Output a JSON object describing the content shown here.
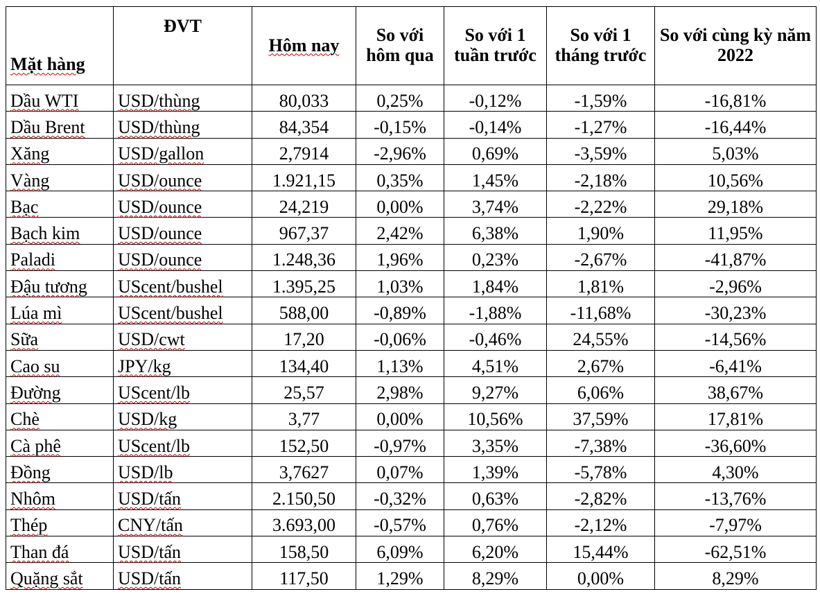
{
  "headers": {
    "item": "Mặt hàng",
    "unit": "ĐVT",
    "today": "Hôm nay",
    "vs_yesterday": "So với hôm qua",
    "vs_week": "So với 1 tuần trước",
    "vs_month": "So với 1 tháng trước",
    "vs_year": "So với cùng kỳ năm 2022"
  },
  "rows": [
    {
      "item": "Dầu WTI",
      "unit": "USD/thùng",
      "today": "80,033",
      "d": "0,25%",
      "w": "-0,12%",
      "m": "-1,59%",
      "y": "-16,81%"
    },
    {
      "item": "Dầu Brent",
      "unit": "USD/thùng",
      "today": "84,354",
      "d": "-0,15%",
      "w": "-0,14%",
      "m": "-1,27%",
      "y": "-16,44%"
    },
    {
      "item": "Xăng",
      "unit": "USD/gallon",
      "today": "2,7914",
      "d": "-2,96%",
      "w": "0,69%",
      "m": "-3,59%",
      "y": "5,03%"
    },
    {
      "item": "Vàng",
      "unit": "USD/ounce",
      "today": "1.921,15",
      "d": "0,35%",
      "w": "1,45%",
      "m": "-2,18%",
      "y": "10,56%"
    },
    {
      "item": "Bạc",
      "unit": "USD/ounce",
      "today": "24,219",
      "d": "0,00%",
      "w": "3,74%",
      "m": "-2,22%",
      "y": "29,18%"
    },
    {
      "item": "Bạch kim",
      "unit": "USD/ounce",
      "today": "967,37",
      "d": "2,42%",
      "w": "6,38%",
      "m": "1,90%",
      "y": "11,95%"
    },
    {
      "item": "Paladi",
      "unit": "USD/ounce",
      "today": "1.248,36",
      "d": "1,96%",
      "w": "0,23%",
      "m": "-2,67%",
      "y": "-41,87%"
    },
    {
      "item": "Đậu tương",
      "unit": "UScent/bushel",
      "today": "1.395,25",
      "d": "1,03%",
      "w": "1,84%",
      "m": "1,81%",
      "y": "-2,96%"
    },
    {
      "item": "Lúa mì",
      "unit": "UScent/bushel",
      "today": "588,00",
      "d": "-0,89%",
      "w": "-1,88%",
      "m": "-11,68%",
      "y": "-30,23%"
    },
    {
      "item": "Sữa",
      "unit": "USD/cwt",
      "today": "17,20",
      "d": "-0,06%",
      "w": "-0,46%",
      "m": "24,55%",
      "y": "-14,56%"
    },
    {
      "item": "Cao su",
      "unit": "JPY/kg",
      "today": "134,40",
      "d": "1,13%",
      "w": "4,51%",
      "m": "2,67%",
      "y": "-6,41%"
    },
    {
      "item": "Đường",
      "unit": "UScent/lb",
      "today": "25,57",
      "d": "2,98%",
      "w": "9,27%",
      "m": "6,06%",
      "y": "38,67%"
    },
    {
      "item": "Chè",
      "unit": "USD/kg",
      "today": "3,77",
      "d": "0,00%",
      "w": "10,56%",
      "m": "37,59%",
      "y": "17,81%"
    },
    {
      "item": "Cà phê",
      "unit": "UScent/lb",
      "today": "152,50",
      "d": "-0,97%",
      "w": "3,35%",
      "m": "-7,38%",
      "y": "-36,60%"
    },
    {
      "item": "Đồng",
      "unit": "USD/lb",
      "today": "3,7627",
      "d": "0,07%",
      "w": "1,39%",
      "m": "-5,78%",
      "y": "4,30%"
    },
    {
      "item": "Nhôm",
      "unit": "USD/tấn",
      "today": "2.150,50",
      "d": "-0,32%",
      "w": "0,63%",
      "m": "-2,82%",
      "y": "-13,76%"
    },
    {
      "item": "Thép",
      "unit": "CNY/tấn",
      "today": "3.693,00",
      "d": "-0,57%",
      "w": "0,76%",
      "m": "-2,12%",
      "y": "-7,97%"
    },
    {
      "item": "Than đá",
      "unit": "USD/tấn",
      "today": "158,50",
      "d": "6,09%",
      "w": "6,20%",
      "m": "15,44%",
      "y": "-62,51%"
    },
    {
      "item": "Quặng sắt",
      "unit": "USD/tấn",
      "today": "117,50",
      "d": "1,29%",
      "w": "8,29%",
      "m": "0,00%",
      "y": "8,29%"
    }
  ]
}
